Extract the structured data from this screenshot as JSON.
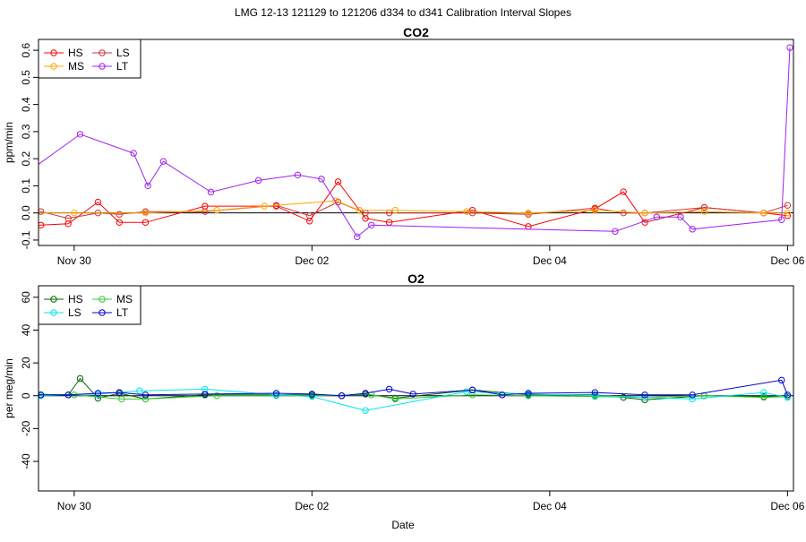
{
  "figure": {
    "title": "LMG   12-13    121129 to 121206    d334 to d341   Calibration Interval Slopes",
    "xlabel": "Date"
  },
  "chart_data": [
    {
      "type": "line",
      "title": "CO2",
      "ylabel": "ppm/min",
      "xlabel": "",
      "xlim": [
        29.7,
        36.05
      ],
      "ylim": [
        -0.12,
        0.64
      ],
      "xticks": [
        30,
        32,
        34,
        36
      ],
      "xtick_labels": [
        "Nov 30",
        "Dec 02",
        "Dec 04",
        "Dec 06"
      ],
      "yticks": [
        -0.1,
        0.0,
        0.1,
        0.2,
        0.3,
        0.4,
        0.5,
        0.6
      ],
      "ytick_labels": [
        "-0.1",
        "0.0",
        "0.1",
        "0.2",
        "0.3",
        "0.4",
        "0.5",
        "0.6"
      ],
      "hline": 0,
      "legend_position": "top-left",
      "series": [
        {
          "name": "HS",
          "color": "#ff0000",
          "x": [
            29.48,
            29.6,
            29.72,
            29.95,
            30.2,
            30.38,
            30.6,
            31.1,
            31.7,
            31.98,
            32.22,
            32.45,
            32.65,
            33.35,
            33.82,
            34.38,
            34.62,
            34.8,
            35.3,
            35.8,
            36.0
          ],
          "y": [
            0.052,
            -0.048,
            -0.045,
            -0.04,
            0.04,
            -0.035,
            -0.035,
            0.025,
            0.025,
            -0.03,
            0.115,
            -0.02,
            -0.035,
            0.01,
            -0.05,
            0.015,
            0.078,
            -0.035,
            0.02,
            0.0,
            -0.01
          ]
        },
        {
          "name": "LS",
          "color": "#cc3333",
          "x": [
            29.48,
            29.6,
            29.72,
            29.95,
            30.2,
            30.38,
            30.6,
            31.1,
            31.7,
            31.98,
            32.22,
            32.45,
            32.65,
            33.35,
            33.82,
            34.38,
            34.62,
            34.8,
            35.3,
            35.8,
            36.0
          ],
          "y": [
            0.025,
            0.018,
            0.005,
            -0.02,
            0.0,
            -0.005,
            0.005,
            0.005,
            0.028,
            -0.01,
            0.04,
            0.0,
            0.0,
            0.0,
            -0.005,
            0.018,
            0.0,
            0.0,
            0.02,
            0.0,
            0.028
          ]
        },
        {
          "name": "MS",
          "color": "#ffa500",
          "x": [
            29.6,
            30.0,
            30.6,
            31.2,
            31.6,
            32.2,
            32.4,
            32.7,
            33.3,
            33.82,
            34.38,
            34.8,
            35.3,
            35.8,
            36.0
          ],
          "y": [
            0.0,
            0.0,
            0.0,
            0.01,
            0.025,
            0.045,
            0.01,
            0.01,
            0.005,
            0.0,
            0.01,
            0.0,
            0.005,
            0.0,
            0.0
          ]
        },
        {
          "name": "LT",
          "color": "#a020f0",
          "x": [
            29.6,
            30.05,
            30.5,
            30.62,
            30.75,
            31.15,
            31.55,
            31.88,
            32.08,
            32.38,
            32.5,
            34.55,
            34.9,
            35.1,
            35.2,
            35.95,
            36.02
          ],
          "y": [
            0.148,
            0.29,
            0.22,
            0.1,
            0.19,
            0.077,
            0.12,
            0.14,
            0.125,
            -0.088,
            -0.045,
            -0.068,
            -0.015,
            -0.015,
            -0.06,
            -0.025,
            0.61
          ]
        }
      ]
    },
    {
      "type": "line",
      "title": "O2",
      "ylabel": "per meg/min",
      "xlabel": "Date",
      "xlim": [
        29.7,
        36.05
      ],
      "ylim": [
        -58,
        67
      ],
      "xticks": [
        30,
        32,
        34,
        36
      ],
      "xtick_labels": [
        "Nov 30",
        "Dec 02",
        "Dec 04",
        "Dec 06"
      ],
      "yticks": [
        -40,
        -20,
        0,
        20,
        40,
        60
      ],
      "ytick_labels": [
        "-40",
        "-20",
        "0",
        "20",
        "40",
        "60"
      ],
      "hline": 0,
      "legend_position": "top-left",
      "series": [
        {
          "name": "HS",
          "color": "#006400",
          "x": [
            29.48,
            29.6,
            29.72,
            29.95,
            30.05,
            30.2,
            30.38,
            30.6,
            31.1,
            31.7,
            32.0,
            32.25,
            32.45,
            32.7,
            33.35,
            33.82,
            34.38,
            34.62,
            34.8,
            35.3,
            35.8,
            36.0
          ],
          "y": [
            3.0,
            1.5,
            0.5,
            0.5,
            10.5,
            -1.5,
            1.5,
            -2.0,
            0.5,
            0.5,
            0.5,
            0.0,
            1.0,
            -1.5,
            3.5,
            0.5,
            0.5,
            -1.0,
            -2.5,
            0.0,
            -0.5,
            -0.5
          ]
        },
        {
          "name": "MS",
          "color": "#33cc33",
          "x": [
            29.6,
            30.0,
            30.4,
            30.6,
            31.2,
            31.7,
            32.0,
            32.5,
            32.7,
            33.35,
            33.82,
            34.38,
            34.8,
            35.3,
            35.8,
            36.0
          ],
          "y": [
            1.0,
            0.5,
            -2.0,
            -2.0,
            0.0,
            0.0,
            0.0,
            0.5,
            -2.0,
            0.5,
            0.0,
            -0.5,
            -1.0,
            0.0,
            -1.0,
            -0.5
          ]
        },
        {
          "name": "LS",
          "color": "#00e5ee",
          "x": [
            29.48,
            29.62,
            29.72,
            29.95,
            30.2,
            30.55,
            31.1,
            31.7,
            32.0,
            32.45,
            33.3,
            33.82,
            34.38,
            34.8,
            35.2,
            35.8,
            36.0
          ],
          "y": [
            3.0,
            -2.0,
            0.0,
            0.5,
            1.0,
            3.0,
            4.0,
            0.5,
            -0.5,
            -9.0,
            2.5,
            1.0,
            0.0,
            -1.0,
            -2.0,
            2.0,
            -1.0
          ]
        },
        {
          "name": "LT",
          "color": "#0000cd",
          "x": [
            29.48,
            29.6,
            29.72,
            29.95,
            30.2,
            30.38,
            30.6,
            31.1,
            31.7,
            32.0,
            32.25,
            32.45,
            32.65,
            32.85,
            33.35,
            33.6,
            33.82,
            34.38,
            34.8,
            35.2,
            35.95,
            36.0
          ],
          "y": [
            5.5,
            2.0,
            0.5,
            0.5,
            1.5,
            2.0,
            0.5,
            1.0,
            1.5,
            1.0,
            0.0,
            1.5,
            4.0,
            1.0,
            3.5,
            0.5,
            1.5,
            2.0,
            0.5,
            0.5,
            9.5,
            0.5
          ]
        }
      ]
    }
  ]
}
